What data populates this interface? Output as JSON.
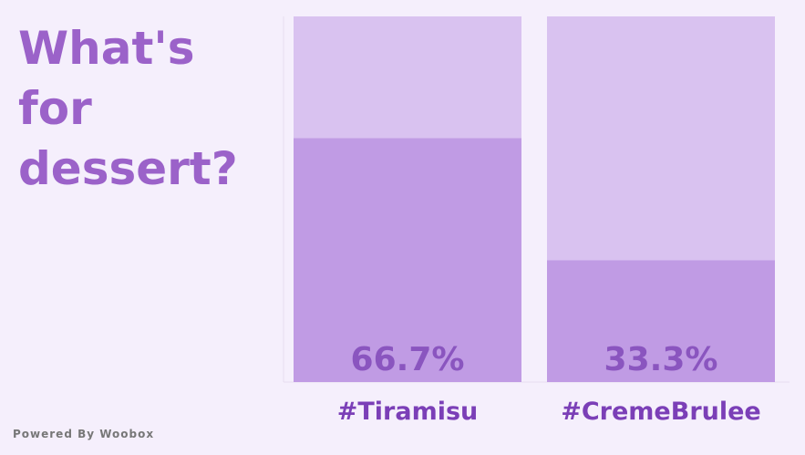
{
  "chart_data": {
    "type": "bar",
    "title": "What's for dessert?",
    "categories": [
      "#Tiramisu",
      "#CremeBrulee"
    ],
    "values": [
      66.7,
      33.3
    ],
    "value_labels": [
      "66.7%",
      "33.3%"
    ],
    "ylim": [
      0,
      100
    ],
    "color": "#c09be4",
    "track_color": "#d9c2f0",
    "footer": "Powered By Woobox"
  }
}
